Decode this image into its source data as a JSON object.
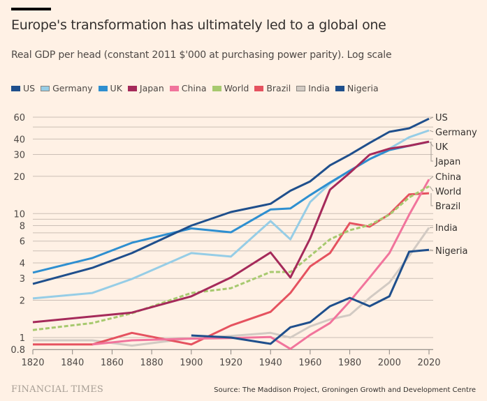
{
  "header": {
    "title": "Europe's transformation has ultimately led to a global one",
    "subtitle": "Real GDP per head (constant 2011 $'000 at purchasing power parity). Log scale"
  },
  "footer": {
    "logo": "FINANCIAL TIMES",
    "source": "Source: The Maddison Project, Groningen Growth and Development Centre"
  },
  "chart_data": {
    "type": "line",
    "title": "Europe's transformation has ultimately led to a global one",
    "subtitle": "Real GDP per head (constant 2011 $'000 at purchasing power parity). Log scale",
    "xlabel": "",
    "ylabel": "",
    "yscale": "log",
    "xlim": [
      1820,
      2020
    ],
    "ylim": [
      0.8,
      60
    ],
    "grid": true,
    "legend_position": "top-left",
    "x_ticks": [
      1820,
      1840,
      1860,
      1880,
      1900,
      1920,
      1940,
      1960,
      1980,
      2000,
      2020
    ],
    "y_ticks": [
      0.8,
      1,
      2,
      3,
      4,
      6,
      8,
      10,
      20,
      30,
      40,
      60
    ],
    "y_tick_labels": [
      "0.8",
      "1",
      "2",
      "3",
      "4",
      "6",
      "8",
      "10",
      "20",
      "30",
      "40",
      "60"
    ],
    "y_gridlines": [
      0.8,
      1,
      2,
      3,
      4,
      5,
      6,
      7,
      8,
      9,
      10,
      20,
      30,
      40,
      50,
      60
    ],
    "series": [
      {
        "name": "India",
        "color": "#d2cac3",
        "dashed": false,
        "label": "India",
        "x": [
          1820,
          1850,
          1870,
          1900,
          1920,
          1940,
          1950,
          1960,
          1970,
          1980,
          1990,
          2000,
          2010,
          2020
        ],
        "values": [
          0.95,
          0.95,
          0.86,
          0.99,
          1.03,
          1.09,
          1.0,
          1.23,
          1.4,
          1.52,
          2.09,
          2.78,
          4.55,
          7.7
        ]
      },
      {
        "name": "Brazil",
        "color": "#e5525f",
        "dashed": false,
        "label": "Brazil",
        "x": [
          1820,
          1850,
          1870,
          1900,
          1920,
          1940,
          1950,
          1960,
          1970,
          1980,
          1990,
          2000,
          2010,
          2020
        ],
        "values": [
          0.88,
          0.88,
          1.09,
          0.88,
          1.25,
          1.61,
          2.29,
          3.75,
          4.8,
          8.4,
          7.85,
          9.9,
          14.3,
          14.6
        ]
      },
      {
        "name": "China",
        "color": "#f1749c",
        "dashed": false,
        "label": "China",
        "x": [
          1850,
          1870,
          1900,
          1920,
          1940,
          1950,
          1960,
          1970,
          1980,
          1990,
          2000,
          2010,
          2020
        ],
        "values": [
          0.88,
          0.95,
          0.98,
          0.99,
          1.01,
          0.81,
          1.05,
          1.31,
          1.96,
          3.05,
          4.8,
          9.8,
          18.9
        ]
      },
      {
        "name": "Nigeria",
        "color": "#1f4f8c",
        "dashed": false,
        "label": "Nigeria",
        "x": [
          1900,
          1920,
          1940,
          1950,
          1960,
          1970,
          1980,
          1990,
          2000,
          2010,
          2020
        ],
        "values": [
          1.04,
          1.0,
          0.89,
          1.21,
          1.33,
          1.79,
          2.09,
          1.79,
          2.15,
          4.93,
          5.1
        ]
      },
      {
        "name": "Germany",
        "color": "#96cde6",
        "dashed": false,
        "label": "Germany",
        "x": [
          1820,
          1850,
          1870,
          1900,
          1920,
          1940,
          1950,
          1960,
          1970,
          1980,
          1990,
          2000,
          2010,
          2020
        ],
        "values": [
          2.07,
          2.29,
          2.97,
          4.8,
          4.5,
          8.7,
          6.2,
          12.4,
          17.5,
          22.2,
          27.5,
          33.4,
          41.3,
          46.9
        ]
      },
      {
        "name": "UK",
        "color": "#2e8fd0",
        "dashed": false,
        "label": "UK",
        "x": [
          1820,
          1850,
          1870,
          1900,
          1920,
          1940,
          1950,
          1960,
          1970,
          1980,
          1990,
          2000,
          2010,
          2020
        ],
        "values": [
          3.34,
          4.38,
          5.82,
          7.6,
          7.07,
          10.8,
          11.0,
          14.1,
          17.8,
          22.2,
          27.5,
          32.6,
          35.3,
          38.0
        ]
      },
      {
        "name": "World",
        "color": "#a7c96f",
        "dashed": true,
        "label": "World",
        "x": [
          1820,
          1850,
          1870,
          1900,
          1920,
          1940,
          1950,
          1960,
          1970,
          1980,
          1990,
          2000,
          2010,
          2020
        ],
        "values": [
          1.15,
          1.31,
          1.57,
          2.29,
          2.5,
          3.38,
          3.38,
          4.55,
          6.2,
          7.35,
          8.1,
          9.8,
          13.5,
          16.6
        ]
      },
      {
        "name": "Japan",
        "color": "#a52a5a",
        "dashed": false,
        "label": "Japan",
        "x": [
          1820,
          1850,
          1870,
          1900,
          1920,
          1940,
          1950,
          1960,
          1970,
          1980,
          1990,
          2000,
          2010,
          2020
        ],
        "values": [
          1.33,
          1.48,
          1.59,
          2.15,
          3.05,
          4.86,
          3.05,
          6.3,
          15.6,
          21.3,
          29.9,
          33.4,
          35.3,
          38.1
        ]
      },
      {
        "name": "US",
        "color": "#1f4f8c",
        "dashed": false,
        "label": "US",
        "x": [
          1820,
          1850,
          1870,
          1900,
          1920,
          1940,
          1950,
          1960,
          1970,
          1980,
          1990,
          2000,
          2010,
          2020
        ],
        "values": [
          2.71,
          3.65,
          4.8,
          8.0,
          10.3,
          12.0,
          15.3,
          18.2,
          24.5,
          29.9,
          37.2,
          45.7,
          48.8,
          58.3
        ]
      }
    ],
    "legend": [
      {
        "name": "US",
        "color": "#1f4f8c"
      },
      {
        "name": "Germany",
        "color": "#96cde6"
      },
      {
        "name": "UK",
        "color": "#2e8fd0"
      },
      {
        "name": "Japan",
        "color": "#a52a5a"
      },
      {
        "name": "China",
        "color": "#f1749c"
      },
      {
        "name": "World",
        "color": "#a7c96f"
      },
      {
        "name": "Brazil",
        "color": "#e5525f"
      },
      {
        "name": "India",
        "color": "#d2cac3"
      },
      {
        "name": "Nigeria",
        "color": "#1f4f8c"
      }
    ],
    "end_labels": [
      {
        "text": "US",
        "series": "US"
      },
      {
        "text": "Germany",
        "series": "Germany"
      },
      {
        "text": "UK",
        "series": "UK"
      },
      {
        "text": "Japan",
        "series": "Japan"
      },
      {
        "text": "China",
        "series": "China"
      },
      {
        "text": "World",
        "series": "World"
      },
      {
        "text": "Brazil",
        "series": "Brazil"
      },
      {
        "text": "India",
        "series": "India"
      },
      {
        "text": "Nigeria",
        "series": "Nigeria"
      }
    ]
  }
}
